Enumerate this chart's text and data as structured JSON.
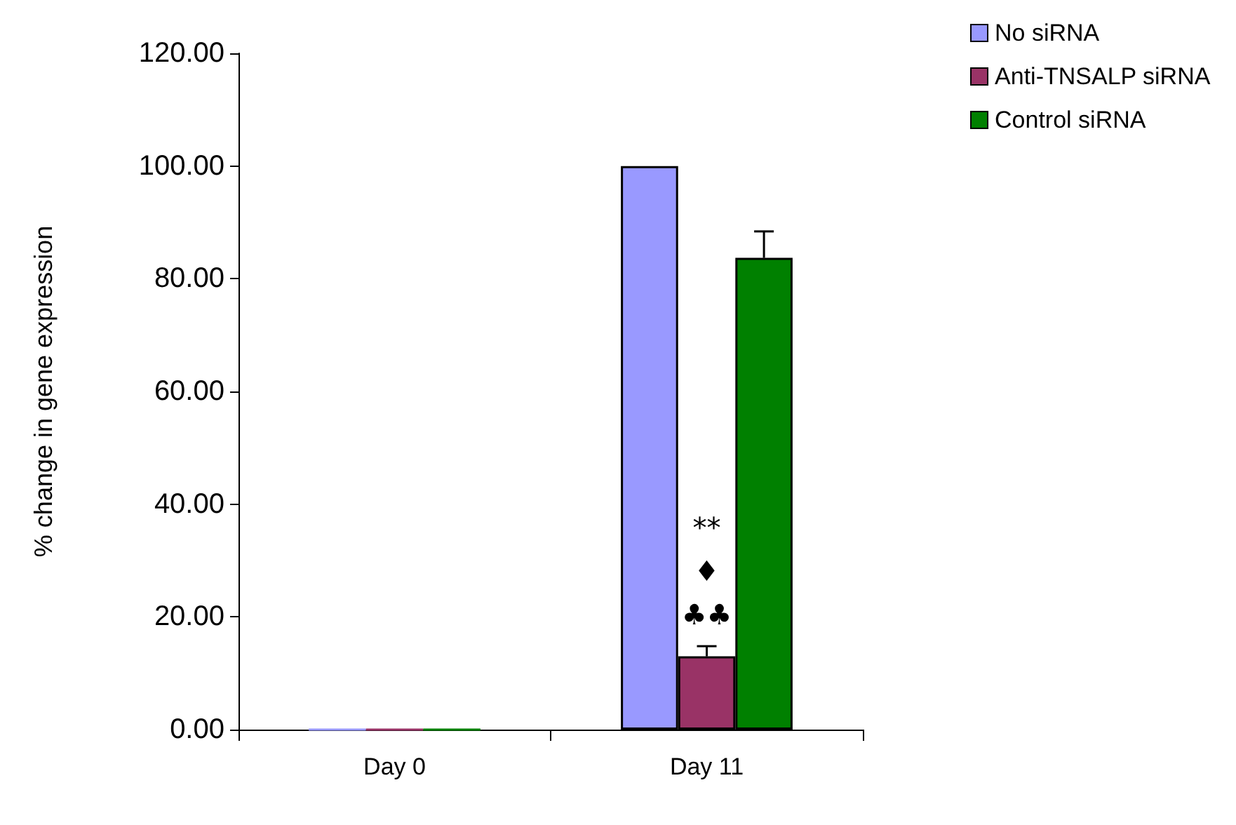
{
  "chart_data": {
    "type": "bar",
    "ylabel": "% change in gene expression",
    "categories": [
      "Day 0",
      "Day 11"
    ],
    "series": [
      {
        "name": "No siRNA",
        "color": "#9999ff",
        "values": [
          0,
          100
        ]
      },
      {
        "name": "Anti-TNSALP siRNA",
        "color": "#993366",
        "values": [
          0,
          13
        ],
        "errors": [
          null,
          1.8
        ]
      },
      {
        "name": "Control siRNA",
        "color": "#008000",
        "values": [
          0,
          83.7
        ],
        "errors": [
          null,
          4.7
        ]
      }
    ],
    "ylim": [
      0,
      120
    ],
    "yticks": [
      {
        "value": 0,
        "label": "0.00"
      },
      {
        "value": 20,
        "label": "20.00"
      },
      {
        "value": 40,
        "label": "40.00"
      },
      {
        "value": 60,
        "label": "60.00"
      },
      {
        "value": 80,
        "label": "80.00"
      },
      {
        "value": 100,
        "label": "100.00"
      },
      {
        "value": 120,
        "label": "120.00"
      }
    ],
    "annotations": [
      "**",
      "♦",
      "♣♣"
    ],
    "grid": false,
    "legend": "top right"
  }
}
